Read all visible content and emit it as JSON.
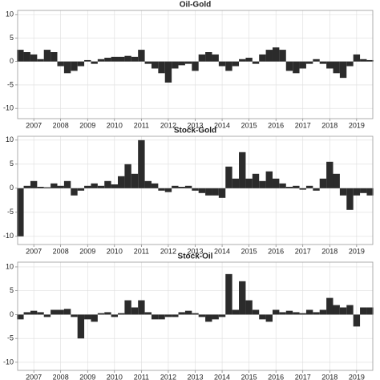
{
  "chart_data": [
    {
      "type": "bar",
      "title": "Oil-Gold",
      "color": "#2b2b2b",
      "grid": true,
      "x": [
        2006.5,
        2006.75,
        2007,
        2007.25,
        2007.5,
        2007.75,
        2008,
        2008.25,
        2008.5,
        2008.75,
        2009,
        2009.25,
        2009.5,
        2009.75,
        2010,
        2010.25,
        2010.5,
        2010.75,
        2011,
        2011.25,
        2011.5,
        2011.75,
        2012,
        2012.25,
        2012.5,
        2012.75,
        2013,
        2013.25,
        2013.5,
        2013.75,
        2014,
        2014.25,
        2014.5,
        2014.75,
        2015,
        2015.25,
        2015.5,
        2015.75,
        2016,
        2016.25,
        2016.5,
        2016.75,
        2017,
        2017.25,
        2017.5,
        2017.75,
        2018,
        2018.25,
        2018.5,
        2018.75,
        2019,
        2019.25,
        2019.5
      ],
      "values": [
        2.5,
        2,
        1.5,
        0.5,
        2.5,
        2,
        -1,
        -2.5,
        -2,
        -1,
        0.3,
        -0.5,
        0.5,
        0.8,
        1,
        1,
        1.2,
        1,
        2.5,
        -0.5,
        -1.5,
        -2.5,
        -4.5,
        -1.5,
        -0.8,
        -0.5,
        -2,
        1.5,
        2,
        1.5,
        -1,
        -2,
        -1,
        0.5,
        0.8,
        -0.5,
        1.5,
        2.5,
        3,
        2.5,
        -2,
        -2.5,
        -1.5,
        -0.5,
        0.5,
        -0.5,
        -1.5,
        -2.5,
        -3.5,
        -1,
        1.5,
        0.5,
        0.3
      ],
      "xlim": [
        2006.4,
        2019.6
      ],
      "xticks": [
        2007,
        2008,
        2009,
        2010,
        2011,
        2012,
        2013,
        2014,
        2015,
        2016,
        2017,
        2018,
        2019
      ],
      "ylim": [
        -12.2,
        10.9
      ],
      "yticks": [
        -10,
        -5,
        0,
        5,
        10
      ]
    },
    {
      "type": "bar",
      "title": "Stock-Gold",
      "color": "#2b2b2b",
      "grid": true,
      "x": [
        2006.5,
        2006.75,
        2007,
        2007.25,
        2007.5,
        2007.75,
        2008,
        2008.25,
        2008.5,
        2008.75,
        2009,
        2009.25,
        2009.5,
        2009.75,
        2010,
        2010.25,
        2010.5,
        2010.75,
        2011,
        2011.25,
        2011.5,
        2011.75,
        2012,
        2012.25,
        2012.5,
        2012.75,
        2013,
        2013.25,
        2013.5,
        2013.75,
        2014,
        2014.25,
        2014.5,
        2014.75,
        2015,
        2015.25,
        2015.5,
        2015.75,
        2016,
        2016.25,
        2016.5,
        2016.75,
        2017,
        2017.25,
        2017.5,
        2017.75,
        2018,
        2018.25,
        2018.5,
        2018.75,
        2019,
        2019.25,
        2019.5
      ],
      "values": [
        -10,
        0.5,
        1.5,
        0.3,
        0.2,
        1,
        0.5,
        1.5,
        -1.5,
        -0.5,
        0.5,
        1,
        0.5,
        1.5,
        0.8,
        2.5,
        5,
        3,
        10,
        1.5,
        1,
        -0.5,
        -0.8,
        0.5,
        0.3,
        0.5,
        -0.5,
        -1,
        -1.5,
        -1.5,
        -2,
        4.5,
        2,
        7.5,
        2,
        3,
        1.5,
        3.5,
        2,
        1,
        0.3,
        0.5,
        -0.3,
        0.5,
        -0.5,
        2,
        5.5,
        3,
        -1.5,
        -4.5,
        -1.5,
        -1,
        -1.5
      ],
      "xlim": [
        2006.4,
        2019.6
      ],
      "xticks": [
        2007,
        2008,
        2009,
        2010,
        2011,
        2012,
        2013,
        2014,
        2015,
        2016,
        2017,
        2018,
        2019
      ],
      "ylim": [
        -11.7,
        10.8
      ],
      "yticks": [
        -10,
        -5,
        0,
        5,
        10
      ]
    },
    {
      "type": "bar",
      "title": "Stock-Oil",
      "color": "#2b2b2b",
      "grid": true,
      "x": [
        2006.5,
        2006.75,
        2007,
        2007.25,
        2007.5,
        2007.75,
        2008,
        2008.25,
        2008.5,
        2008.75,
        2009,
        2009.25,
        2009.5,
        2009.75,
        2010,
        2010.25,
        2010.5,
        2010.75,
        2011,
        2011.25,
        2011.5,
        2011.75,
        2012,
        2012.25,
        2012.5,
        2012.75,
        2013,
        2013.25,
        2013.5,
        2013.75,
        2014,
        2014.25,
        2014.5,
        2014.75,
        2015,
        2015.25,
        2015.5,
        2015.75,
        2016,
        2016.25,
        2016.5,
        2016.75,
        2017,
        2017.25,
        2017.5,
        2017.75,
        2018,
        2018.25,
        2018.5,
        2018.75,
        2019,
        2019.25,
        2019.5
      ],
      "values": [
        -1,
        0.5,
        0.8,
        0.5,
        -0.5,
        1,
        1,
        1.2,
        -0.5,
        -5,
        -1,
        -1.5,
        0.3,
        0.5,
        -0.5,
        0.3,
        3,
        1.5,
        3,
        0.5,
        -1,
        -1,
        -0.5,
        -0.5,
        0.5,
        0.8,
        0.3,
        -0.5,
        -1.5,
        -1,
        -0.5,
        8.5,
        1,
        7,
        3,
        1,
        -1,
        -1.5,
        1,
        0.5,
        0.8,
        0.5,
        0.3,
        1,
        0.5,
        1,
        3.5,
        2,
        1.5,
        2,
        -2.5,
        1.5,
        1.5
      ],
      "xlim": [
        2006.4,
        2019.6
      ],
      "xticks": [
        2007,
        2008,
        2009,
        2010,
        2011,
        2012,
        2013,
        2014,
        2015,
        2016,
        2017,
        2018,
        2019
      ],
      "ylim": [
        -11.7,
        11
      ],
      "yticks": [
        -10,
        -5,
        0,
        5,
        10
      ]
    }
  ]
}
